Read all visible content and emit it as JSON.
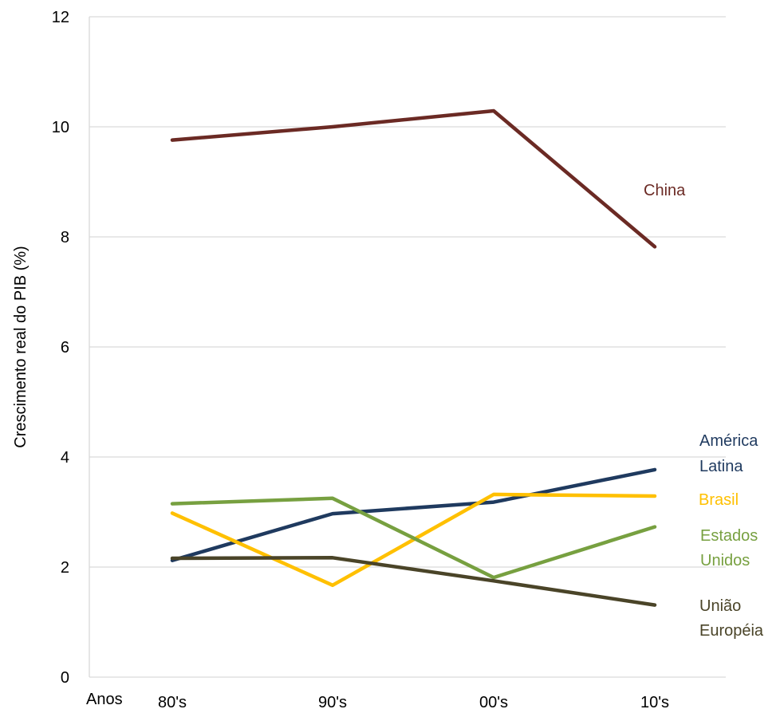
{
  "chart_data": {
    "type": "line",
    "title": "",
    "xlabel": "Anos",
    "ylabel": "Crescimento real do PIB (%)",
    "categories": [
      "80's",
      "90's",
      "00's",
      "10's"
    ],
    "ylim": [
      0,
      12
    ],
    "yticks": [
      0,
      2,
      4,
      6,
      8,
      10,
      12
    ],
    "grid": true,
    "legend": "inline labels at the right end of each series",
    "series": [
      {
        "name": "China",
        "color": "#6b2a24",
        "values": [
          9.76,
          10.0,
          10.29,
          7.82
        ]
      },
      {
        "name": "América Latina",
        "label_lines": [
          "América",
          "Latina"
        ],
        "color": "#1f3a5f",
        "values": [
          2.12,
          2.97,
          3.18,
          3.77
        ]
      },
      {
        "name": "Brasil",
        "color": "#ffc000",
        "values": [
          2.98,
          1.67,
          3.32,
          3.29
        ]
      },
      {
        "name": "Estados Unidos",
        "label_lines": [
          "Estados",
          "Unidos"
        ],
        "color": "#77a040",
        "values": [
          3.15,
          3.25,
          1.81,
          2.73
        ]
      },
      {
        "name": "União Européia",
        "label_lines": [
          "União",
          "Européia"
        ],
        "color": "#4a4428",
        "values": [
          2.16,
          2.17,
          1.75,
          1.31
        ]
      }
    ]
  }
}
